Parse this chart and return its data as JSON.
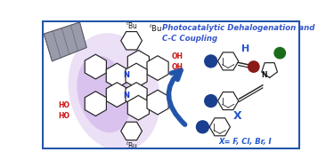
{
  "bg_color": "#ffffff",
  "border_color": "#2255aa",
  "molecule_color": "#222222",
  "N_color": "#1133cc",
  "OH_color": "#cc1111",
  "dot_blue": "#1a3f8f",
  "dot_red": "#8b1a1a",
  "dot_green": "#1a6b1a",
  "arrow_color": "#2255aa",
  "X_color": "#2255cc",
  "H_color": "#2255cc",
  "xeq_text": "X= F, Cl, Br, I",
  "xeq_color": "#2255cc",
  "title_tbu": "tBu",
  "title_phot": "Photocatalytic Dehalogenation and",
  "title_cc": "C-C Coupling",
  "title_color": "#3355cc",
  "laser_fc": "#999aaa",
  "laser_ec": "#555566",
  "glow1_color": "#e0ccf0",
  "glow2_color": "#c8a8e8",
  "tbu_top": "tBu",
  "tbu_bot": "tBu",
  "ho_top1": "OH",
  "ho_top2": "OH",
  "ho_bot1": "HO",
  "ho_bot2": "HO"
}
